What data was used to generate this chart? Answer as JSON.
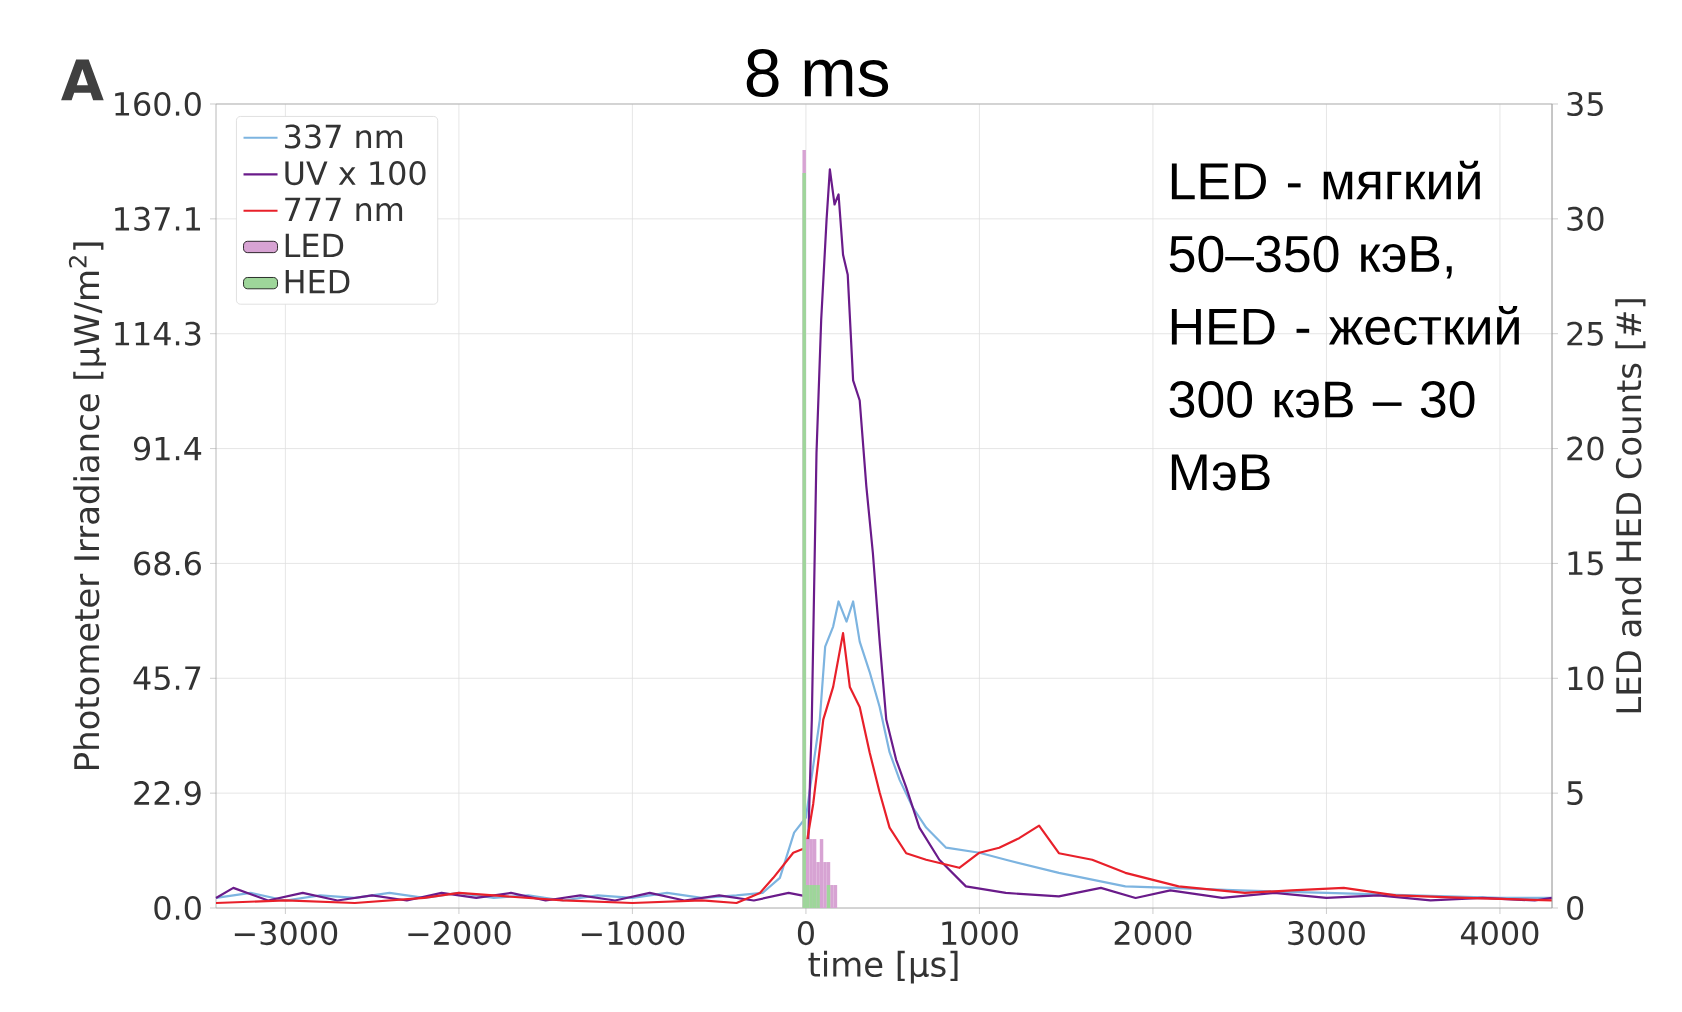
{
  "chart_data": {
    "type": "line",
    "title": "8 ms",
    "xlabel": "time [μs]",
    "ylabel": "Photometer Irradiance [μW/m$^{2}$]",
    "y2label": "LED and HED Counts [#]",
    "annotations": [
      "A",
      "LED - мягкий 50–350 кэВ, HED - жесткий 300 кэВ – 30 МэВ"
    ],
    "xlim": [
      -3400,
      4300
    ],
    "ylim": [
      0,
      160
    ],
    "y2lim": [
      0,
      35
    ],
    "xticks": [
      {
        "value": -3000,
        "label": "−3000"
      },
      {
        "value": -2000,
        "label": "−2000"
      },
      {
        "value": -1000,
        "label": "−1000"
      },
      0,
      1000,
      2000,
      3000,
      4000
    ],
    "yticks": [
      {
        "value": 0,
        "label": "0.0"
      },
      {
        "value": 22.857,
        "label": "22.9"
      },
      {
        "value": 45.714,
        "label": "45.7"
      },
      {
        "value": 68.571,
        "label": "68.6"
      },
      {
        "value": 91.429,
        "label": "91.4"
      },
      {
        "value": 114.286,
        "label": "114.3"
      },
      {
        "value": 137.143,
        "label": "137.1"
      },
      {
        "value": 160,
        "label": "160.0"
      }
    ],
    "y2ticks": [
      0,
      5,
      10,
      15,
      20,
      25,
      30,
      35
    ],
    "grid": true,
    "legend": "top left",
    "series": [
      {
        "name": "337 nm",
        "color": "#7db4e0",
        "x": [
          -3400,
          -3200,
          -3000,
          -2800,
          -2600,
          -2400,
          -2200,
          -2000,
          -1800,
          -1600,
          -1400,
          -1200,
          -1000,
          -800,
          -600,
          -400,
          -250,
          -150,
          -68,
          0,
          80,
          111,
          157,
          188,
          234,
          272,
          310,
          367,
          425,
          482,
          540,
          616,
          693,
          808,
          1000,
          1152,
          1458,
          1841,
          2100,
          2500,
          3000,
          3500,
          4000,
          4300
        ],
        "values": [
          2,
          3,
          1.5,
          2.5,
          2,
          3,
          2,
          3,
          2,
          2.5,
          1.5,
          2.5,
          2,
          3,
          2,
          2.5,
          3,
          6,
          15,
          18,
          37.5,
          52,
          56,
          61,
          57,
          61,
          53,
          47,
          40,
          31,
          25.5,
          20,
          16,
          12,
          11,
          9.6,
          7,
          4.3,
          4,
          3.5,
          3,
          2.5,
          2,
          2
        ]
      },
      {
        "name": "UV x 100",
        "color": "#6a1b8a",
        "x": [
          -3400,
          -3300,
          -3100,
          -2900,
          -2700,
          -2500,
          -2300,
          -2100,
          -1900,
          -1700,
          -1500,
          -1300,
          -1100,
          -900,
          -700,
          -500,
          -300,
          -100,
          4,
          34,
          61,
          88,
          119,
          138,
          165,
          188,
          214,
          241,
          272,
          310,
          348,
          386,
          425,
          463,
          520,
          578,
          654,
          769,
          922,
          1152,
          1458,
          1700,
          1900,
          2100,
          2400,
          2700,
          3000,
          3300,
          3600,
          3900,
          4200,
          4300
        ],
        "values": [
          2,
          4,
          1.5,
          3,
          1.5,
          2.5,
          1.5,
          3,
          2,
          3,
          1.5,
          2.5,
          1.5,
          3,
          1.5,
          2.5,
          1.5,
          3,
          2.3,
          37.5,
          90.6,
          117,
          137,
          147,
          140,
          142,
          130,
          126,
          105,
          101,
          84,
          70.6,
          53,
          37.5,
          29.5,
          24,
          16,
          9.6,
          4.3,
          3,
          2.3,
          4,
          2,
          3.5,
          2,
          3,
          2,
          2.5,
          1.5,
          2,
          1.5,
          2
        ]
      },
      {
        "name": "777 nm",
        "color": "#e8202a",
        "x": [
          -3400,
          -3000,
          -2600,
          -2200,
          -2000,
          -1800,
          -1400,
          -1000,
          -600,
          -400,
          -265,
          -188,
          -73,
          0,
          42,
          100,
          157,
          214,
          253,
          310,
          367,
          425,
          482,
          578,
          693,
          884,
          1000,
          1114,
          1229,
          1344,
          1458,
          1650,
          1841,
          2148,
          2530,
          2800,
          3100,
          3400,
          3800,
          4300
        ],
        "values": [
          1,
          1.5,
          1,
          2,
          3,
          2.5,
          1.5,
          1,
          1.5,
          1,
          3,
          6,
          11,
          12,
          20.7,
          37.5,
          44,
          54.7,
          44,
          40,
          31,
          23,
          16,
          10.9,
          9.6,
          8,
          11,
          12,
          13.9,
          16.4,
          10.9,
          9.6,
          7,
          4.3,
          3,
          3.5,
          4,
          2.5,
          2,
          1.5
        ]
      },
      {
        "name": "LED",
        "type": "histogram",
        "axis": "y2",
        "color": "#d7a3d3",
        "bins": [
          -20,
          0,
          20,
          40,
          60,
          80,
          100,
          120,
          140,
          160,
          180,
          200,
          220
        ],
        "values": [
          33,
          3,
          3,
          3,
          2,
          3,
          2,
          2,
          1,
          1,
          0,
          0
        ]
      },
      {
        "name": "HED",
        "type": "histogram",
        "axis": "y2",
        "color": "#9ed69a",
        "bins": [
          -20,
          0,
          20,
          40,
          60,
          80,
          100,
          120,
          140,
          160,
          180,
          200,
          220
        ],
        "values": [
          32,
          1,
          1,
          1,
          1,
          0,
          0,
          1,
          0,
          0,
          0,
          0
        ]
      }
    ]
  }
}
